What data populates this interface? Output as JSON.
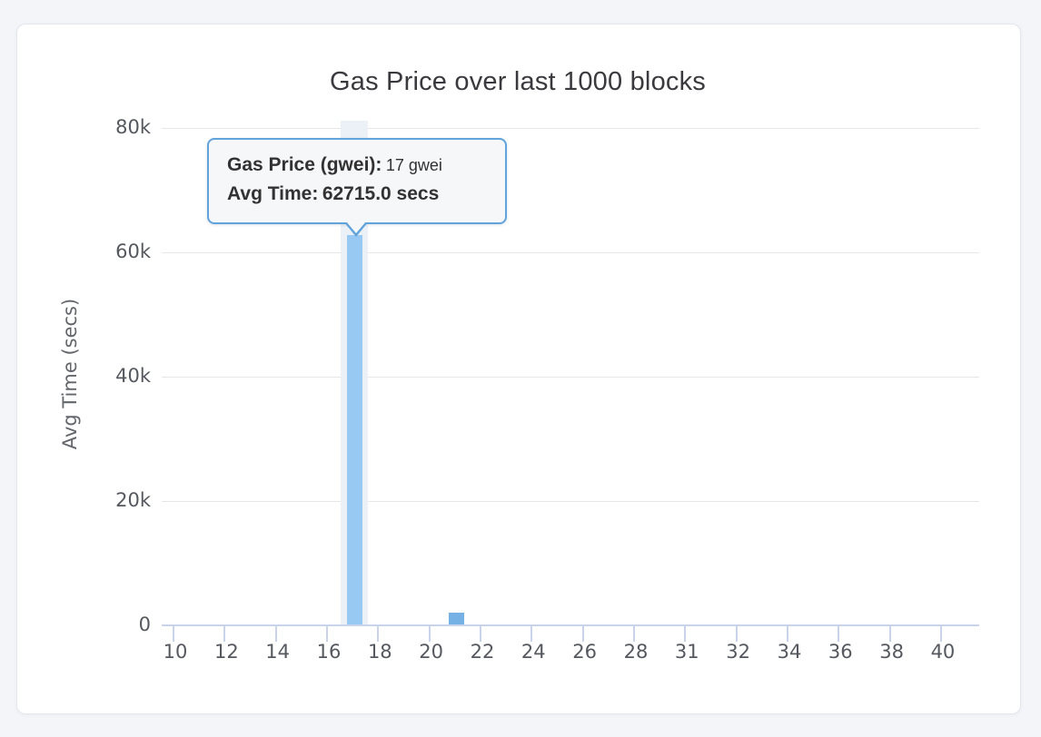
{
  "page": {
    "background_color": "#F4F5F8",
    "card_background": "#FFFFFF"
  },
  "chart_data": {
    "type": "bar",
    "title": "Gas Price over last 1000 blocks",
    "xlabel": "",
    "ylabel": "Avg Time (secs)",
    "x_tick_labels": [
      "10",
      "12",
      "14",
      "16",
      "18",
      "20",
      "22",
      "24",
      "26",
      "28",
      "31",
      "32",
      "34",
      "36",
      "38",
      "40"
    ],
    "y_ticks": [
      {
        "label": "0",
        "value": 0
      },
      {
        "label": "20k",
        "value": 20000
      },
      {
        "label": "40k",
        "value": 40000
      },
      {
        "label": "60k",
        "value": 60000
      },
      {
        "label": "80k",
        "value": 80000
      }
    ],
    "ylim": [
      0,
      80000
    ],
    "grid": "horizontal",
    "legend": "none",
    "bars": [
      {
        "x": 17,
        "value": 62715.0,
        "state": "hovered"
      },
      {
        "x": 21,
        "value": 2000,
        "state": "normal"
      }
    ],
    "colors": {
      "bar": "#76B1E6",
      "bar_highlight": "#97C9F3",
      "hover_band": "#ECF1F8",
      "grid": "#E7E7EA",
      "axis": "#C9D3E9",
      "tick_text": "#55585E",
      "tooltip_border": "#61A3DB",
      "tooltip_background": "#F6F7F9"
    }
  },
  "tooltip": {
    "line1_label": "Gas Price (gwei):",
    "line1_value": "17 gwei",
    "line2_label": "Avg Time:",
    "line2_value": "62715.0 secs"
  }
}
